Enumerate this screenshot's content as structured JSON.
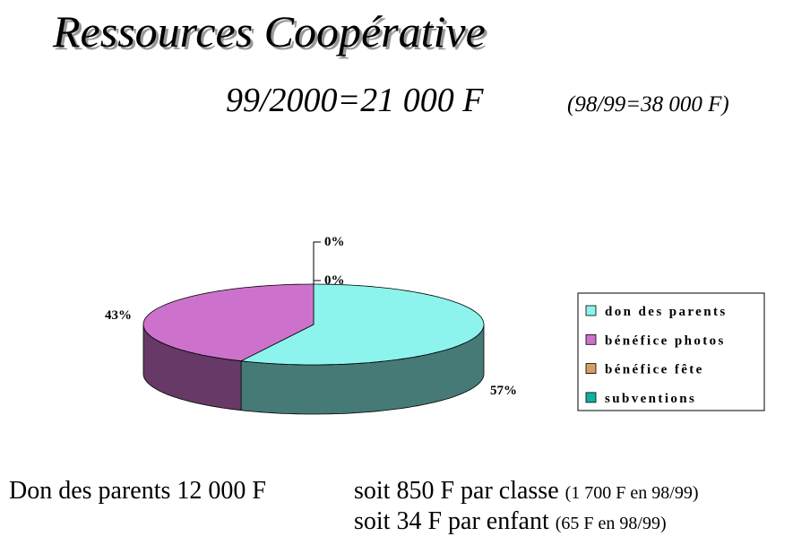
{
  "chart_data": {
    "type": "pie",
    "title": "Ressources Coopérative",
    "subtitle": "99/2000=21 000 F",
    "note": "(98/99=38 000 F)",
    "categories": [
      "don des parents",
      "bénéfice photos",
      "bénéfice fête",
      "subventions"
    ],
    "values": [
      57,
      43,
      0,
      0
    ],
    "value_labels": [
      "57%",
      "43%",
      "0%",
      "0%"
    ],
    "colors": [
      "#8cf4ec",
      "#cc72cc",
      "#d4a062",
      "#10b0a0"
    ],
    "legend": "right"
  },
  "notes": {
    "donation": "Don des parents 12 000 F",
    "lines": [
      {
        "text": "soit 850 F par classe",
        "detail": "(1 700 F en 98/99)"
      },
      {
        "text": "soit 34 F par enfant",
        "detail": "(65 F en 98/99)"
      }
    ]
  }
}
